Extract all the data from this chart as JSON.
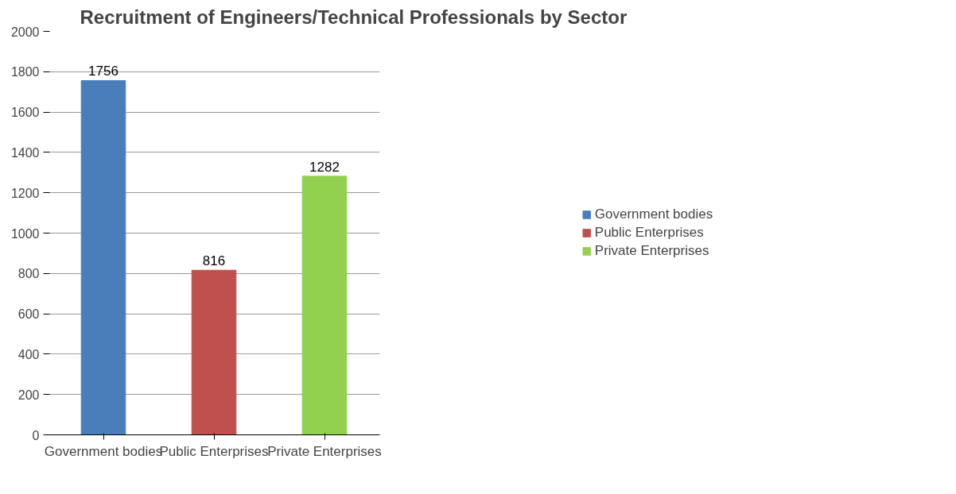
{
  "chart_data": {
    "type": "bar",
    "title": "Recruitment of Engineers/Technical Professionals by Sector",
    "categories": [
      "Government bodies",
      "Public Enterprises",
      "Private Enterprises"
    ],
    "series": [
      {
        "name": "Government bodies",
        "color": "#4a7ebb",
        "values": [
          1756,
          null,
          null
        ]
      },
      {
        "name": "Public Enterprises",
        "color": "#c0504d",
        "values": [
          null,
          816,
          null
        ]
      },
      {
        "name": "Private Enterprises",
        "color": "#92d050",
        "values": [
          null,
          null,
          1282
        ]
      }
    ],
    "ylim": [
      0,
      2000
    ],
    "yticks": [
      0,
      200,
      400,
      600,
      800,
      1000,
      1200,
      1400,
      1600,
      1800,
      2000
    ],
    "grid": "y",
    "legend": "right",
    "data_labels": true
  }
}
